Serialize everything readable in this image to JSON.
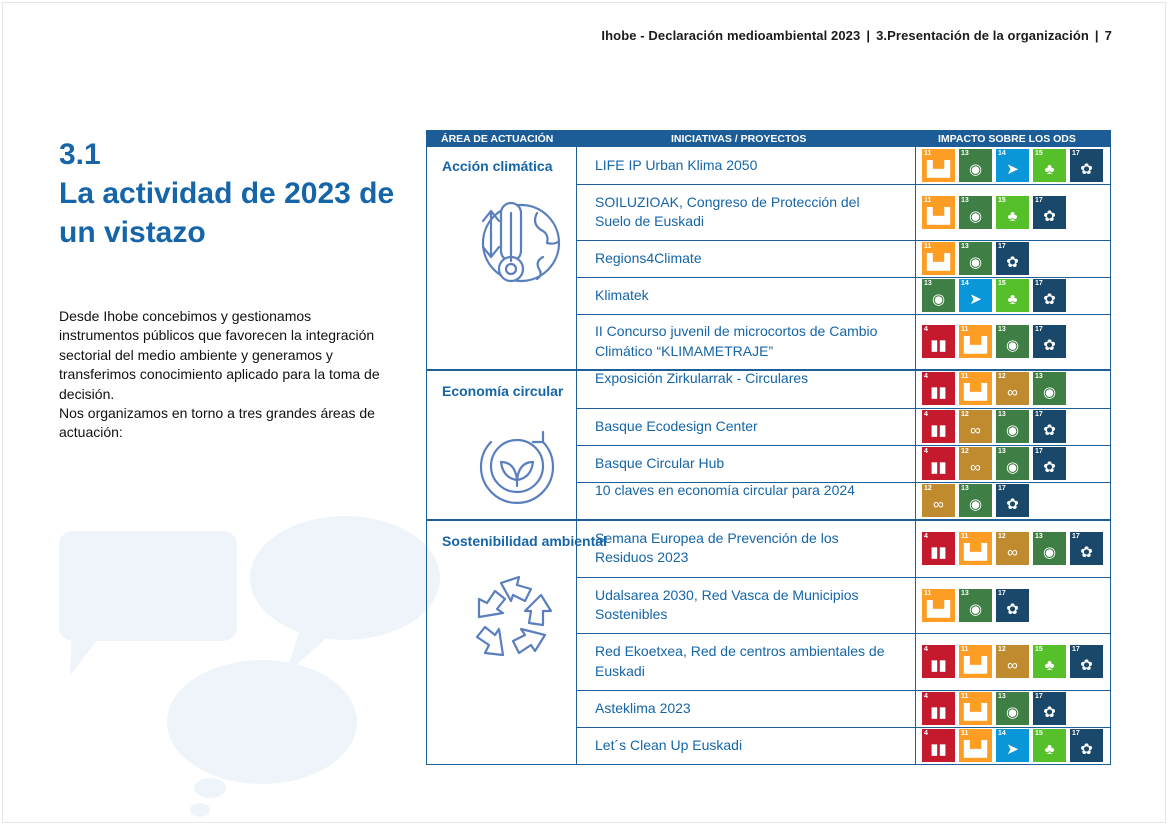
{
  "header": {
    "doc": "Ihobe - Declaración medioambiental 2023",
    "section": "3.Presentación de la organización",
    "page": "7"
  },
  "section_number": "3.1",
  "section_title": "La actividad de 2023 de un vistazo",
  "intro": {
    "p1": "Desde Ihobe concebimos y gestionamos instrumentos públicos que favorecen la integración sectorial del medio ambiente y generamos y transferimos conocimiento aplicado para la toma de decisión.",
    "p2": "Nos organizamos en torno a tres grandes áreas de actuación:"
  },
  "table": {
    "col_area": "ÁREA DE ACTUACIÓN",
    "col_initiatives": "INICIATIVAS / PROYECTOS",
    "col_impact": "IMPACTO SOBRE LOS ODS"
  },
  "areas": [
    {
      "name": "Acción climática",
      "icon": "thermometer-globe-icon"
    },
    {
      "name": "Economía circular",
      "icon": "leaves-cycle-icon"
    },
    {
      "name": "Sostenibilidad ambiental",
      "icon": "recycle-arrows-icon"
    }
  ],
  "projects": [
    {
      "name": "LIFE IP Urban Klima 2050",
      "ods": [
        11,
        13,
        14,
        15,
        17
      ]
    },
    {
      "name": "SOILUZIOAK, Congreso de Protección del Suelo de Euskadi",
      "ods": [
        11,
        13,
        15,
        17
      ]
    },
    {
      "name": "Regions4Climate",
      "ods": [
        11,
        13,
        17
      ]
    },
    {
      "name": "Klimatek",
      "ods": [
        13,
        14,
        15,
        17
      ]
    },
    {
      "name": "II Concurso juvenil de microcortos de Cambio Climático “KLIMAMETRAJE”",
      "ods": [
        4,
        11,
        13,
        17
      ]
    },
    {
      "name": "Exposición Zirkularrak - Circulares",
      "ods": [
        4,
        11,
        12,
        13
      ]
    },
    {
      "name": "Basque Ecodesign Center",
      "ods": [
        4,
        12,
        13,
        17
      ]
    },
    {
      "name": "Basque Circular Hub",
      "ods": [
        4,
        12,
        13,
        17
      ]
    },
    {
      "name": "10 claves en economía circular para 2024",
      "ods": [
        12,
        13,
        17
      ]
    },
    {
      "name": "Semana Europea de Prevención de los Residuos 2023",
      "ods": [
        4,
        11,
        12,
        13,
        17
      ]
    },
    {
      "name": "Udalsarea 2030, Red Vasca de Municipios Sostenibles",
      "ods": [
        11,
        13,
        17
      ]
    },
    {
      "name": "Red Ekoetxea, Red de centros ambientales de Euskadi",
      "ods": [
        4,
        11,
        12,
        15,
        17
      ]
    },
    {
      "name": "Asteklima 2023",
      "ods": [
        4,
        11,
        13,
        17
      ]
    },
    {
      "name": "Let´s Clean Up Euskadi",
      "ods": [
        4,
        11,
        14,
        15,
        17
      ]
    }
  ],
  "sdg_colors": {
    "4": "#c5192d",
    "11": "#fd9d24",
    "12": "#bf8b2e",
    "13": "#3f7e44",
    "14": "#0a97d9",
    "15": "#56c02b",
    "17": "#19486a"
  },
  "sdg_icons": {
    "4": "book-icon",
    "11": "buildings-icon",
    "12": "infinity-icon",
    "13": "eye-globe-icon",
    "14": "fish-icon",
    "15": "tree-icon",
    "17": "flower-icon"
  }
}
